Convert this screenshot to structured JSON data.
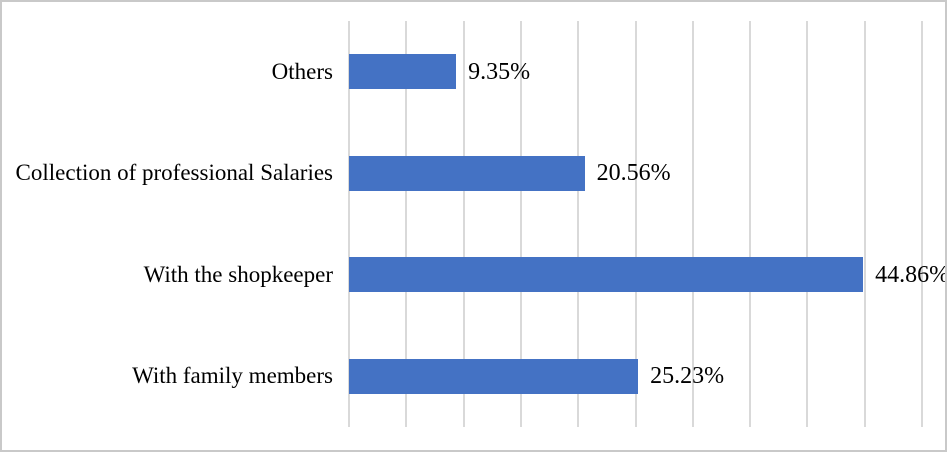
{
  "chart_data": {
    "type": "bar",
    "orientation": "horizontal",
    "title": "",
    "xlabel": "",
    "ylabel": "",
    "categories": [
      "Others",
      "Collection of professional Salaries",
      "With the shopkeeper",
      "With family members"
    ],
    "values": [
      9.35,
      20.56,
      44.86,
      25.23
    ],
    "value_labels": [
      "9.35%",
      "20.56%",
      "44.86%",
      "25.23%"
    ],
    "xlim": [
      0,
      50
    ],
    "gridline_interval": 5,
    "grid": true,
    "axis_tick_labels_visible": false,
    "legend": "none",
    "bar_color": "#4472C4",
    "gridline_color": "#D9D9D9",
    "text_color": "#000000",
    "frame_color": "#C9C9C9",
    "background_color": "#FFFFFF"
  }
}
